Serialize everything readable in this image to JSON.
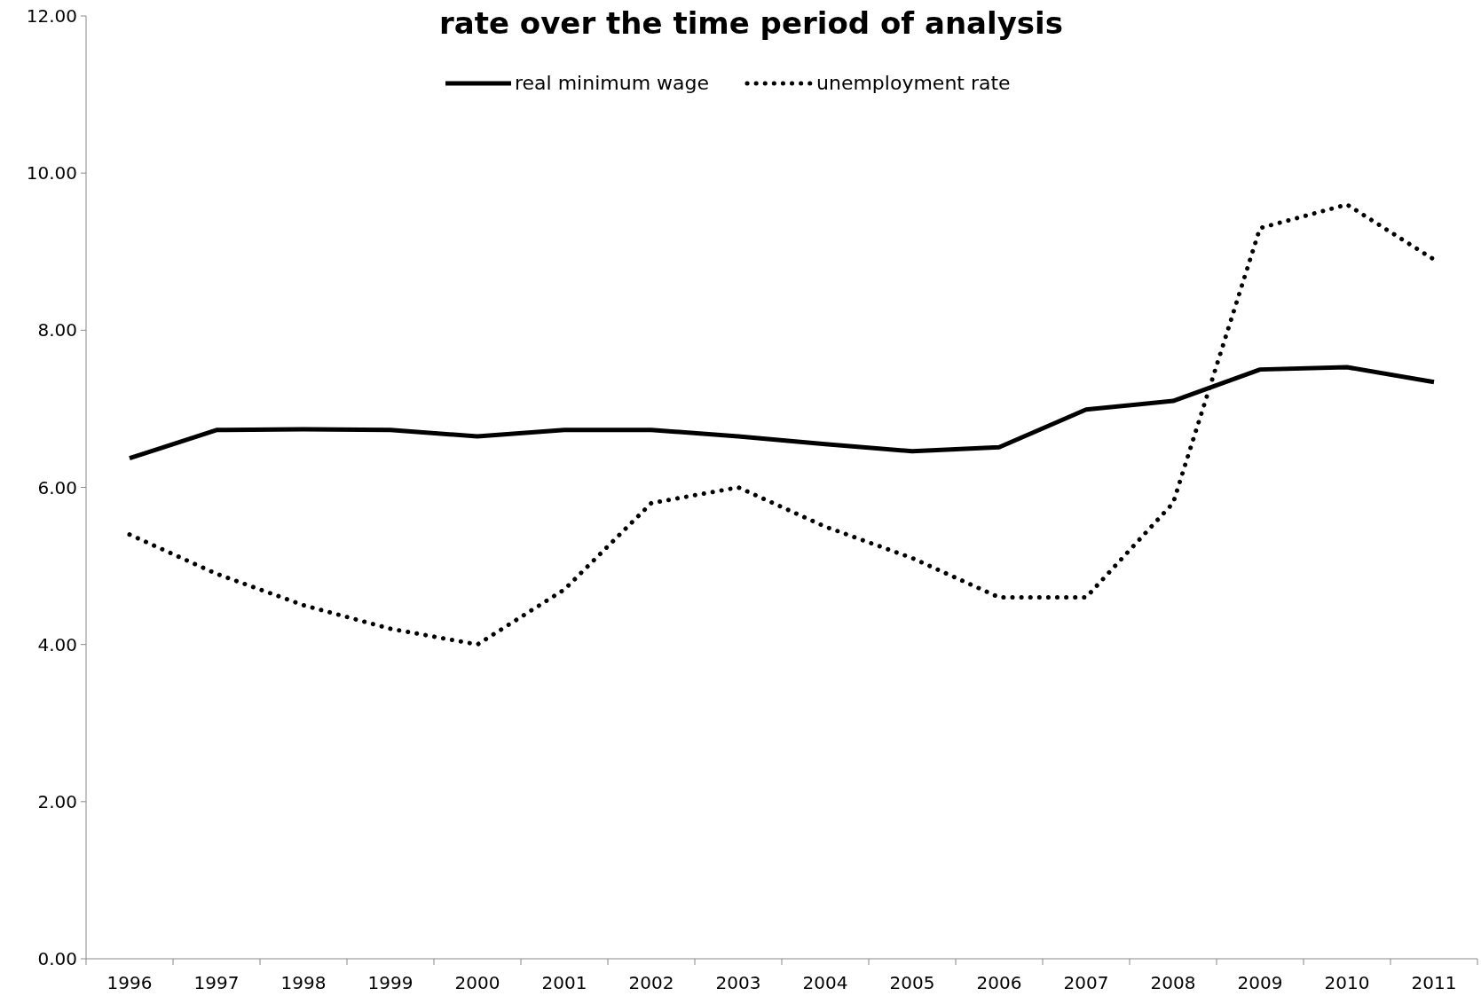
{
  "chart_data": {
    "type": "line",
    "title": "rate over the time period of analysis",
    "categories": [
      "1996",
      "1997",
      "1998",
      "1999",
      "2000",
      "2001",
      "2002",
      "2003",
      "2004",
      "2005",
      "2006",
      "2007",
      "2008",
      "2009",
      "2010",
      "2011"
    ],
    "series": [
      {
        "name": "real minimum wage",
        "color": "#000000",
        "line_style": "solid",
        "values": [
          6.37,
          6.73,
          6.74,
          6.73,
          6.65,
          6.73,
          6.73,
          6.65,
          6.55,
          6.46,
          6.51,
          6.99,
          7.1,
          7.5,
          7.53,
          7.34
        ]
      },
      {
        "name": "unemployment rate",
        "color": "#000000",
        "line_style": "dotted",
        "values": [
          5.4,
          4.9,
          4.5,
          4.2,
          4.0,
          4.7,
          5.8,
          6.0,
          5.5,
          5.1,
          4.6,
          4.6,
          5.8,
          9.3,
          9.6,
          8.9
        ]
      }
    ],
    "ylim": [
      0,
      12
    ],
    "yticks": [
      {
        "value": 0,
        "label": "0.00"
      },
      {
        "value": 2,
        "label": "2.00"
      },
      {
        "value": 4,
        "label": "4.00"
      },
      {
        "value": 6,
        "label": "6.00"
      },
      {
        "value": 8,
        "label": "8.00"
      },
      {
        "value": 10,
        "label": "10.00"
      },
      {
        "value": 12,
        "label": "12.00"
      }
    ],
    "grid": false,
    "legend": "top"
  }
}
